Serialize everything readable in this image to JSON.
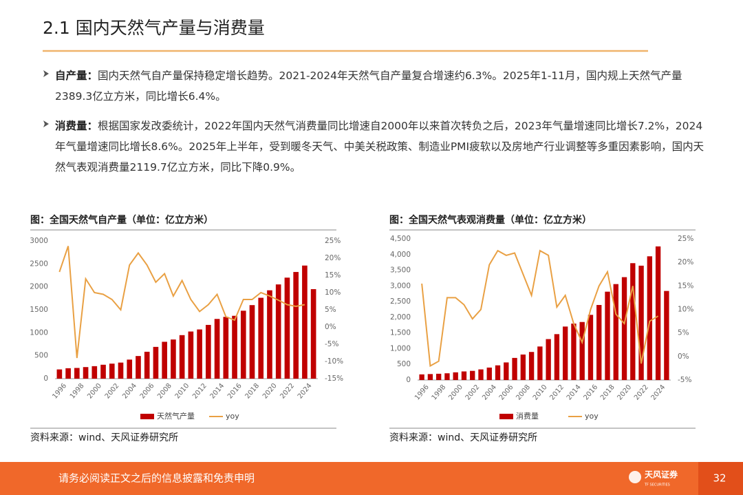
{
  "header": {
    "title": "2.1 国内天然气产量与消费量"
  },
  "bullets": [
    {
      "label": "自产量：",
      "text": "国内天然气自产量保持稳定增长趋势。2021-2024年天然气自产量复合增速约6.3%。2025年1-11月，国内规上天然气产量2389.3亿立方米，同比增长6.4%。"
    },
    {
      "label": "消费量：",
      "text": "根据国家发改委统计，2022年国内天然气消费量同比增速自2000年以来首次转负之后，2023年气量增速同比增长7.2%，2024年气量增速同比增长8.6%。2025年上半年，受到暖冬天气、中美关税政策、制造业PMI疲软以及房地产行业调整等多重因素影响，国内天然气表观消费量2119.7亿立方米，同比下降0.9%。"
    }
  ],
  "charts": [
    {
      "title": "图：全国天然气自产量（单位：亿立方米）",
      "source": "资料来源：wind、天风证券研究所",
      "chart_data": {
        "type": "bar",
        "categories": [
          "1996",
          null,
          "1998",
          null,
          "2000",
          null,
          "2002",
          null,
          "2004",
          null,
          "2006",
          null,
          "2008",
          null,
          "2010",
          null,
          "2012",
          null,
          "2014",
          null,
          "2016",
          null,
          "2018",
          null,
          "2020",
          null,
          "2022",
          null,
          "2024",
          null
        ],
        "series": [
          {
            "name": "天然气产量",
            "color": "#c00000",
            "values": [
              201,
              227,
              233,
              252,
              272,
              303,
              327,
              350,
              415,
              493,
              586,
              692,
              803,
              853,
              948,
              1027,
              1072,
              1171,
              1301,
              1346,
              1369,
              1480,
              1602,
              1762,
              1925,
              2053,
              2201,
              2324,
              2464,
              1950
            ]
          },
          {
            "name": "yoy",
            "type": "line",
            "axis": "y2",
            "color": "#e9a043",
            "values": [
              16,
              23.5,
              -9,
              14,
              10,
              9.5,
              8,
              5,
              18,
              21.5,
              18,
              13,
              15.5,
              9,
              13.5,
              8,
              4.5,
              6.5,
              9.5,
              3,
              2,
              8,
              8,
              10,
              9,
              7.8,
              6.5,
              6,
              6.5,
              null
            ]
          }
        ],
        "ylim": [
          0,
          3000
        ],
        "yticks": [
          0,
          500,
          1000,
          1500,
          2000,
          2500,
          3000
        ],
        "y2lim": [
          -15,
          25
        ],
        "y2ticks": [
          {
            "value": -15,
            "label": "-15%"
          },
          {
            "value": -10,
            "label": "-10%"
          },
          {
            "value": -5,
            "label": "-5%"
          },
          {
            "value": 0,
            "label": "0%"
          },
          {
            "value": 5,
            "label": "5%"
          },
          {
            "value": 10,
            "label": "10%"
          },
          {
            "value": 15,
            "label": "15%"
          },
          {
            "value": 20,
            "label": "20%"
          },
          {
            "value": 25,
            "label": "25%"
          }
        ]
      }
    },
    {
      "title": "图：全国天然气表观消费量（单位：亿立方米）",
      "source": "资料来源：wind、天风证券研究所",
      "chart_data": {
        "type": "bar",
        "categories": [
          "1996",
          null,
          "1998",
          null,
          "2000",
          null,
          "2002",
          null,
          "2004",
          null,
          "2006",
          null,
          "2008",
          null,
          "2010",
          null,
          "2012",
          null,
          "2014",
          null,
          "2016",
          null,
          "2018",
          null,
          "2020",
          null,
          "2022",
          null,
          "2024",
          null
        ],
        "series": [
          {
            "name": "消费量",
            "color": "#c00000",
            "values": [
              180,
              190,
              200,
              215,
              245,
              274,
              292,
              339,
              397,
              468,
              561,
              705,
              813,
              895,
              1069,
              1305,
              1463,
              1705,
              1800,
              1850,
              2078,
              2393,
              2817,
              3059,
              3280,
              3726,
              3646,
              3945,
              4260,
              2840
            ]
          },
          {
            "name": "yoy",
            "type": "line",
            "axis": "y2",
            "color": "#e9a043",
            "values": [
              15.5,
              -2,
              -1,
              12.5,
              12.5,
              11,
              8,
              10,
              19.5,
              22.5,
              21.5,
              22,
              17.5,
              13,
              22.5,
              21.5,
              10.5,
              13,
              7,
              3,
              10,
              15,
              18,
              9,
              7,
              15,
              -1.5,
              7.5,
              8.6,
              null
            ]
          }
        ],
        "ylim": [
          0,
          4500
        ],
        "yticks": [
          0,
          500,
          {
            "value": 1000,
            "label": "1,000"
          },
          {
            "value": 1500,
            "label": "1,500"
          },
          {
            "value": 2000,
            "label": "2,000"
          },
          {
            "value": 2500,
            "label": "2,500"
          },
          {
            "value": 3000,
            "label": "3,000"
          },
          {
            "value": 3500,
            "label": "3,500"
          },
          {
            "value": 4000,
            "label": "4,000"
          },
          {
            "value": 4500,
            "label": "4,500"
          }
        ],
        "y2lim": [
          -5,
          25
        ],
        "y2ticks": [
          {
            "value": -5,
            "label": "-5%"
          },
          {
            "value": 0,
            "label": "0%"
          },
          {
            "value": 5,
            "label": "5%"
          },
          {
            "value": 10,
            "label": "10%"
          },
          {
            "value": 15,
            "label": "15%"
          },
          {
            "value": 20,
            "label": "20%"
          },
          {
            "value": 25,
            "label": "25%"
          }
        ]
      }
    }
  ],
  "footer": {
    "disclaimer": "请务必阅读正文之后的信息披露和免责申明",
    "logo": "天风证券",
    "logo_sub": "TF SECURITIES",
    "page": 32
  }
}
